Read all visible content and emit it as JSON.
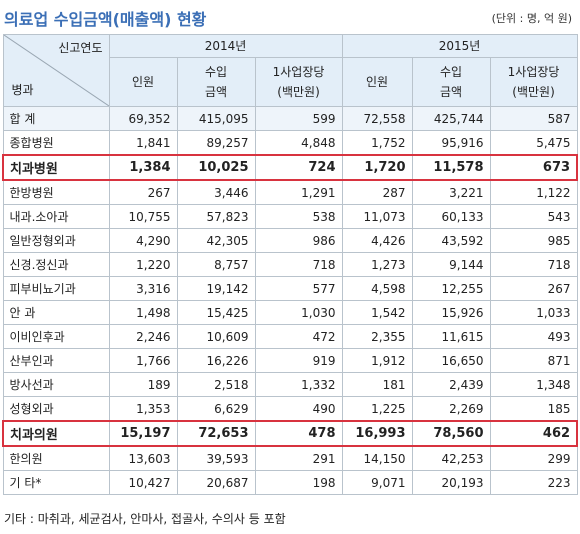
{
  "header": {
    "title": "의료업 수입금액(매출액) 현황",
    "unit": "(단위 : 명, 억 원)"
  },
  "table": {
    "corner_top": "신고연도",
    "corner_bottom": "병과",
    "years": [
      "2014년",
      "2015년"
    ],
    "columns": [
      [
        "인원"
      ],
      [
        "수입",
        "금액"
      ],
      [
        "1사업장당",
        "(백만원)"
      ],
      [
        "인원"
      ],
      [
        "수입",
        "금액"
      ],
      [
        "1사업장당",
        "(백만원)"
      ]
    ],
    "rows": [
      {
        "label": "합 계",
        "values": [
          "69,352",
          "415,095",
          "599",
          "72,558",
          "425,744",
          "587"
        ]
      },
      {
        "label": "종합병원",
        "values": [
          "1,841",
          "89,257",
          "4,848",
          "1,752",
          "95,916",
          "5,475"
        ]
      },
      {
        "label": "치과병원",
        "values": [
          "1,384",
          "10,025",
          "724",
          "1,720",
          "11,578",
          "673"
        ],
        "highlight": true
      },
      {
        "label": "한방병원",
        "values": [
          "267",
          "3,446",
          "1,291",
          "287",
          "3,221",
          "1,122"
        ]
      },
      {
        "label": "내과.소아과",
        "values": [
          "10,755",
          "57,823",
          "538",
          "11,073",
          "60,133",
          "543"
        ]
      },
      {
        "label": "일반정형외과",
        "values": [
          "4,290",
          "42,305",
          "986",
          "4,426",
          "43,592",
          "985"
        ]
      },
      {
        "label": "신경.정신과",
        "values": [
          "1,220",
          "8,757",
          "718",
          "1,273",
          "9,144",
          "718"
        ]
      },
      {
        "label": "피부비뇨기과",
        "values": [
          "3,316",
          "19,142",
          "577",
          "4,598",
          "12,255",
          "267"
        ]
      },
      {
        "label": "안 과",
        "values": [
          "1,498",
          "15,425",
          "1,030",
          "1,542",
          "15,926",
          "1,033"
        ]
      },
      {
        "label": "이비인후과",
        "values": [
          "2,246",
          "10,609",
          "472",
          "2,355",
          "11,615",
          "493"
        ]
      },
      {
        "label": "산부인과",
        "values": [
          "1,766",
          "16,226",
          "919",
          "1,912",
          "16,650",
          "871"
        ]
      },
      {
        "label": "방사선과",
        "values": [
          "189",
          "2,518",
          "1,332",
          "181",
          "2,439",
          "1,348"
        ]
      },
      {
        "label": "성형외과",
        "values": [
          "1,353",
          "6,629",
          "490",
          "1,225",
          "2,269",
          "185"
        ]
      },
      {
        "label": "치과의원",
        "values": [
          "15,197",
          "72,653",
          "478",
          "16,993",
          "78,560",
          "462"
        ],
        "highlight": true
      },
      {
        "label": "한의원",
        "values": [
          "13,603",
          "39,593",
          "291",
          "14,150",
          "42,253",
          "299"
        ]
      },
      {
        "label": "기 타*",
        "values": [
          "10,427",
          "20,687",
          "198",
          "9,071",
          "20,193",
          "223"
        ]
      }
    ]
  },
  "footnote": "기타 : 마취과, 세균검사, 안마사, 접골사, 수의사 등 포함"
}
